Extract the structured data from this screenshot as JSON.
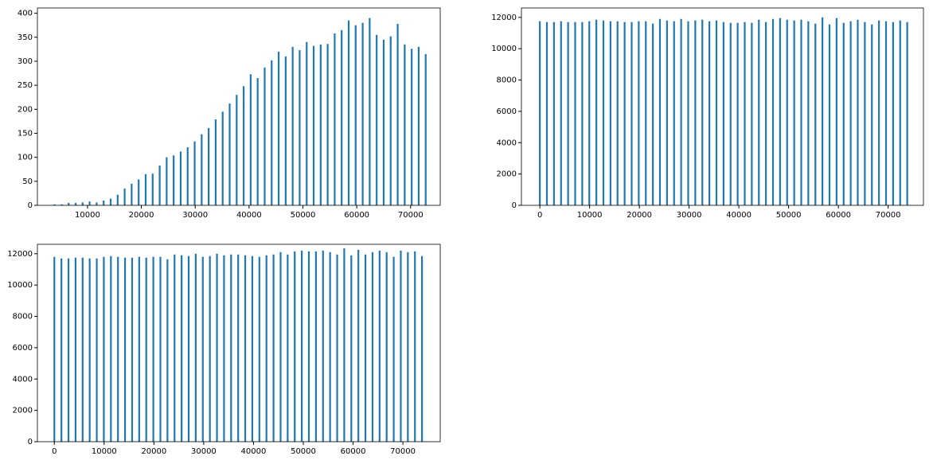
{
  "chart_data": [
    {
      "type": "bar",
      "color": "#1f77b4",
      "x": [
        3900,
        5200,
        6500,
        7800,
        9100,
        10400,
        11700,
        13000,
        14300,
        15600,
        16900,
        18200,
        19500,
        20800,
        22100,
        23400,
        24700,
        26000,
        27300,
        28600,
        29900,
        31200,
        32500,
        33800,
        35100,
        36400,
        37700,
        39000,
        40300,
        41600,
        42900,
        44200,
        45500,
        46800,
        48100,
        49400,
        50700,
        52000,
        53300,
        54600,
        55900,
        57200,
        58500,
        59800,
        61100,
        62400,
        63700,
        65000,
        66300,
        67600,
        68900,
        70200,
        71500,
        72800
      ],
      "values": [
        2,
        2,
        5,
        5,
        6,
        8,
        6,
        10,
        14,
        22,
        35,
        45,
        54,
        65,
        66,
        83,
        100,
        104,
        112,
        121,
        133,
        148,
        161,
        179,
        195,
        212,
        230,
        248,
        273,
        265,
        287,
        302,
        320,
        310,
        330,
        323,
        340,
        332,
        335,
        336,
        358,
        365,
        385,
        375,
        380,
        390,
        355,
        345,
        352,
        378,
        335,
        326,
        330,
        315
      ],
      "xlim": [
        700,
        75500
      ],
      "xticks": [
        10000,
        20000,
        30000,
        40000,
        50000,
        60000,
        70000
      ],
      "ylim": [
        0,
        411
      ],
      "yticks": [
        0,
        50,
        100,
        150,
        200,
        250,
        300,
        350,
        400
      ]
    },
    {
      "type": "bar",
      "color": "#1f77b4",
      "x": [
        0,
        1420,
        2840,
        4260,
        5680,
        7100,
        8520,
        9940,
        11360,
        12780,
        14200,
        15620,
        17040,
        18460,
        19880,
        21300,
        22720,
        24140,
        25560,
        26980,
        28400,
        29820,
        31240,
        32660,
        34080,
        35500,
        36920,
        38340,
        39760,
        41180,
        42600,
        44020,
        45440,
        46860,
        48280,
        49700,
        51120,
        52540,
        53960,
        55380,
        56800,
        58220,
        59640,
        61060,
        62480,
        63900,
        65320,
        66740,
        68160,
        69580,
        71000,
        72420,
        73840
      ],
      "values": [
        11750,
        11700,
        11700,
        11750,
        11700,
        11700,
        11700,
        11750,
        11850,
        11800,
        11750,
        11750,
        11700,
        11700,
        11750,
        11750,
        11600,
        11900,
        11800,
        11750,
        11900,
        11750,
        11800,
        11850,
        11750,
        11800,
        11700,
        11650,
        11650,
        11700,
        11650,
        11850,
        11700,
        11900,
        11950,
        11850,
        11800,
        11850,
        11750,
        11600,
        12000,
        11550,
        11950,
        11650,
        11750,
        11850,
        11700,
        11550,
        11800,
        11750,
        11700,
        11800,
        11700
      ],
      "xlim": [
        -3700,
        77100
      ],
      "xticks": [
        0,
        10000,
        20000,
        30000,
        40000,
        50000,
        60000,
        70000
      ],
      "ylim": [
        0,
        12600
      ],
      "yticks": [
        0,
        2000,
        4000,
        6000,
        8000,
        10000,
        12000
      ]
    },
    {
      "type": "bar",
      "color": "#1f77b4",
      "x": [
        0,
        1420,
        2840,
        4260,
        5680,
        7100,
        8520,
        9940,
        11360,
        12780,
        14200,
        15620,
        17040,
        18460,
        19880,
        21300,
        22720,
        24140,
        25560,
        26980,
        28400,
        29820,
        31240,
        32660,
        34080,
        35500,
        36920,
        38340,
        39760,
        41180,
        42600,
        44020,
        45440,
        46860,
        48280,
        49700,
        51120,
        52540,
        53960,
        55380,
        56800,
        58220,
        59640,
        61060,
        62480,
        63900,
        65320,
        66740,
        68160,
        69580,
        71000,
        72420,
        73840
      ],
      "values": [
        11800,
        11700,
        11700,
        11750,
        11750,
        11700,
        11700,
        11800,
        11850,
        11800,
        11750,
        11750,
        11800,
        11750,
        11800,
        11800,
        11650,
        11950,
        11900,
        11850,
        12000,
        11800,
        11850,
        12000,
        11900,
        11950,
        11950,
        11900,
        11850,
        11800,
        11900,
        11950,
        12100,
        11950,
        12150,
        12200,
        12150,
        12150,
        12200,
        12100,
        11950,
        12350,
        11900,
        12250,
        11950,
        12100,
        12200,
        12100,
        11800,
        12200,
        12100,
        12150,
        11850
      ],
      "xlim": [
        -3400,
        77500
      ],
      "xticks": [
        0,
        10000,
        20000,
        30000,
        40000,
        50000,
        60000,
        70000
      ],
      "ylim": [
        0,
        12600
      ],
      "yticks": [
        0,
        2000,
        4000,
        6000,
        8000,
        10000,
        12000
      ]
    }
  ]
}
